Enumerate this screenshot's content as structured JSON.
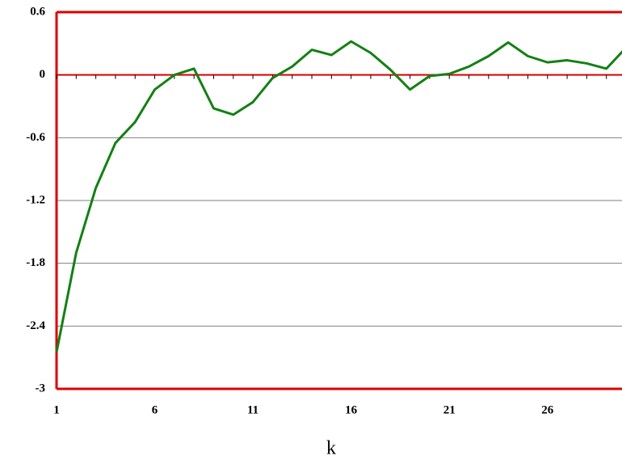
{
  "chart_data": {
    "type": "line",
    "x_label": "k",
    "x": [
      1,
      2,
      3,
      4,
      5,
      6,
      7,
      8,
      9,
      10,
      11,
      12,
      13,
      14,
      15,
      16,
      17,
      18,
      19,
      20,
      21,
      22,
      23,
      24,
      25,
      26,
      27,
      28,
      29,
      30
    ],
    "series": [
      {
        "color": "#138013",
        "values": [
          -2.65,
          -1.7,
          -1.08,
          -0.65,
          -0.45,
          -0.14,
          0.0,
          0.06,
          -0.32,
          -0.38,
          -0.26,
          -0.03,
          0.08,
          0.24,
          0.19,
          0.32,
          0.21,
          0.05,
          -0.14,
          -0.01,
          0.01,
          0.08,
          0.18,
          0.31,
          0.18,
          0.12,
          0.14,
          0.11,
          0.06,
          0.26
        ]
      }
    ],
    "xlim": [
      1,
      30
    ],
    "xticks": [
      1,
      6,
      11,
      16,
      21,
      26
    ],
    "ylim": [
      -3,
      0.6
    ],
    "yticks": [
      -3,
      -2.4,
      -1.8,
      -1.2,
      -0.6,
      0,
      0.6
    ],
    "grid": true,
    "axis_color": "#dd0000",
    "grid_color": "#808080"
  }
}
